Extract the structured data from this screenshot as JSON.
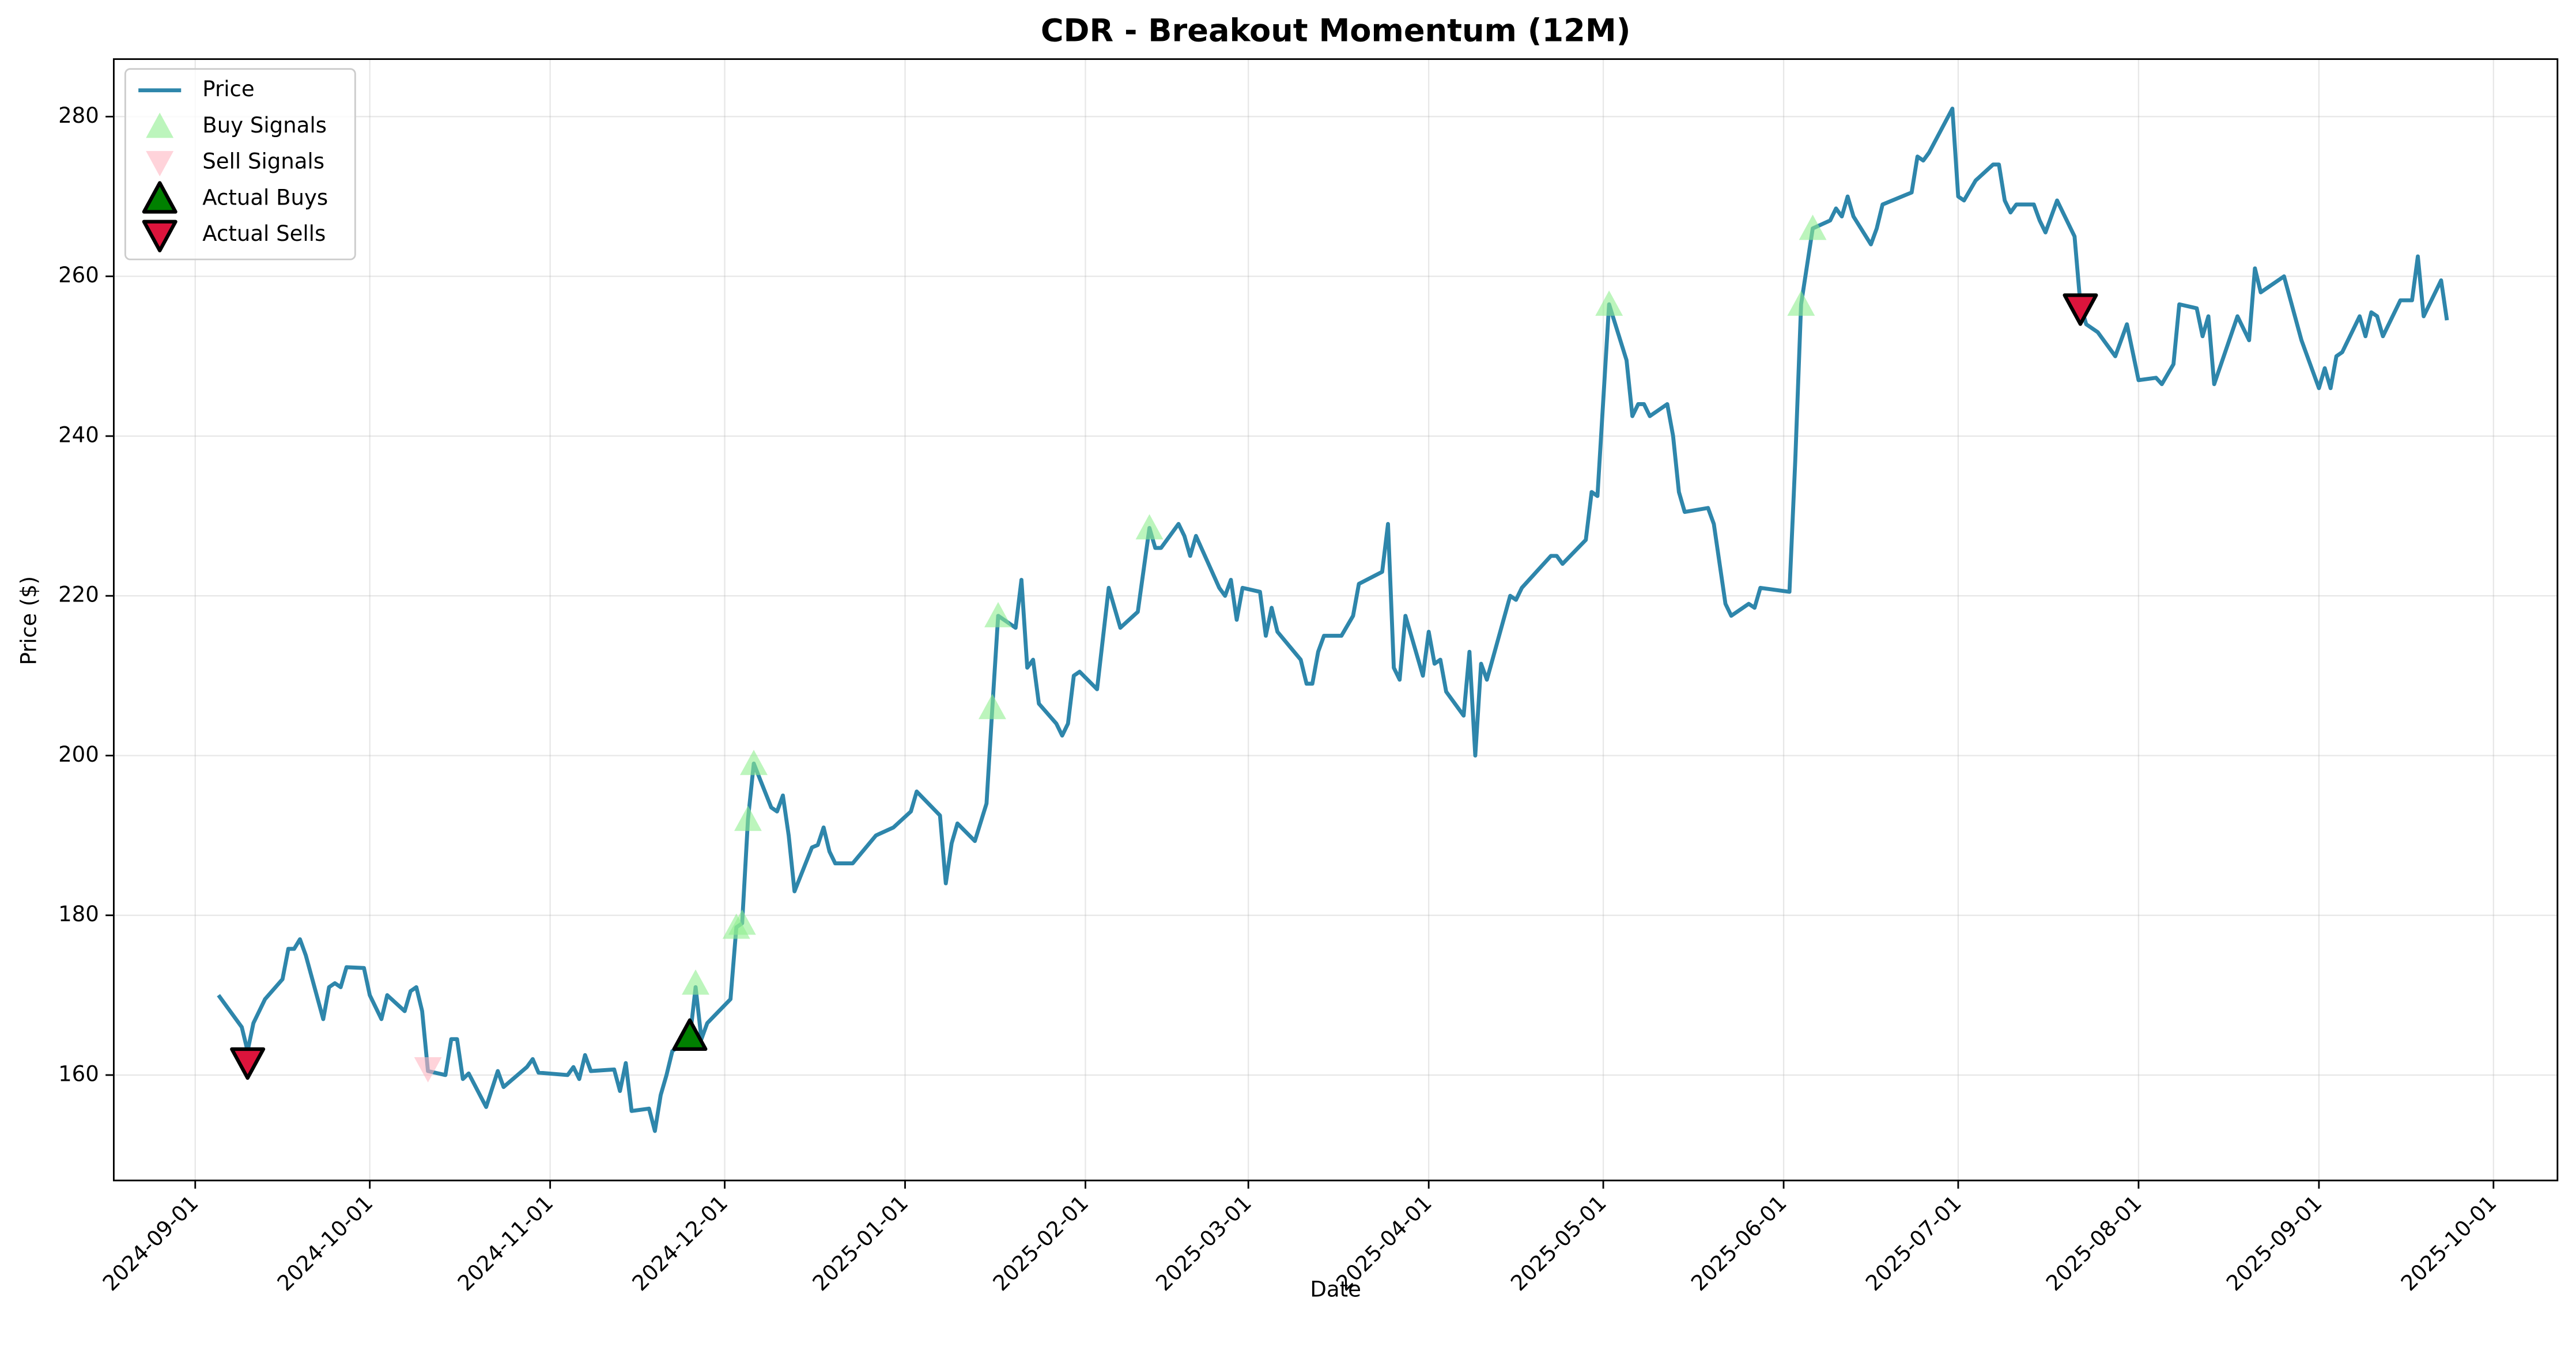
{
  "chart_data": {
    "type": "line",
    "title": "CDR - Breakout Momentum (12M)",
    "x_label": "Date",
    "y_label": "Price ($)",
    "xlim": [
      "2024-08-18",
      "2025-10-12"
    ],
    "xticks": [
      "2024-09-01",
      "2024-10-01",
      "2024-11-01",
      "2024-12-01",
      "2025-01-01",
      "2025-02-01",
      "2025-03-01",
      "2025-04-01",
      "2025-05-01",
      "2025-06-01",
      "2025-07-01",
      "2025-08-01",
      "2025-09-01",
      "2025-10-01"
    ],
    "ylim": [
      146.8,
      287.2
    ],
    "yticks": [
      160,
      180,
      200,
      220,
      240,
      260,
      280
    ],
    "grid": true,
    "legend": "upper-left",
    "series": [
      {
        "name": "Price",
        "marker": "line",
        "color": "#2e86ab",
        "x": [
          "2024-09-05",
          "2024-09-09",
          "2024-09-10",
          "2024-09-11",
          "2024-09-13",
          "2024-09-16",
          "2024-09-17",
          "2024-09-18",
          "2024-09-19",
          "2024-09-20",
          "2024-09-23",
          "2024-09-24",
          "2024-09-25",
          "2024-09-26",
          "2024-09-27",
          "2024-09-30",
          "2024-10-01",
          "2024-10-03",
          "2024-10-04",
          "2024-10-07",
          "2024-10-08",
          "2024-10-09",
          "2024-10-10",
          "2024-10-11",
          "2024-10-14",
          "2024-10-15",
          "2024-10-16",
          "2024-10-17",
          "2024-10-18",
          "2024-10-21",
          "2024-10-23",
          "2024-10-24",
          "2024-10-28",
          "2024-10-29",
          "2024-10-30",
          "2024-11-04",
          "2024-11-05",
          "2024-11-06",
          "2024-11-07",
          "2024-11-08",
          "2024-11-12",
          "2024-11-13",
          "2024-11-14",
          "2024-11-15",
          "2024-11-18",
          "2024-11-19",
          "2024-11-20",
          "2024-11-21",
          "2024-11-22",
          "2024-11-25",
          "2024-11-26",
          "2024-11-27",
          "2024-11-28",
          "2024-12-02",
          "2024-12-03",
          "2024-12-04",
          "2024-12-05",
          "2024-12-06",
          "2024-12-09",
          "2024-12-10",
          "2024-12-11",
          "2024-12-12",
          "2024-12-13",
          "2024-12-16",
          "2024-12-17",
          "2024-12-18",
          "2024-12-19",
          "2024-12-20",
          "2024-12-23",
          "2024-12-27",
          "2024-12-30",
          "2025-01-02",
          "2025-01-03",
          "2025-01-07",
          "2025-01-08",
          "2025-01-09",
          "2025-01-10",
          "2025-01-13",
          "2025-01-15",
          "2025-01-16",
          "2025-01-17",
          "2025-01-20",
          "2025-01-21",
          "2025-01-22",
          "2025-01-23",
          "2025-01-24",
          "2025-01-27",
          "2025-01-28",
          "2025-01-29",
          "2025-01-30",
          "2025-01-31",
          "2025-02-03",
          "2025-02-05",
          "2025-02-07",
          "2025-02-10",
          "2025-02-12",
          "2025-02-13",
          "2025-02-14",
          "2025-02-17",
          "2025-02-18",
          "2025-02-19",
          "2025-02-20",
          "2025-02-24",
          "2025-02-25",
          "2025-02-26",
          "2025-02-27",
          "2025-02-28",
          "2025-03-03",
          "2025-03-04",
          "2025-03-05",
          "2025-03-06",
          "2025-03-10",
          "2025-03-11",
          "2025-03-12",
          "2025-03-13",
          "2025-03-14",
          "2025-03-17",
          "2025-03-19",
          "2025-03-20",
          "2025-03-24",
          "2025-03-25",
          "2025-03-26",
          "2025-03-27",
          "2025-03-28",
          "2025-03-31",
          "2025-04-01",
          "2025-04-02",
          "2025-04-03",
          "2025-04-04",
          "2025-04-07",
          "2025-04-08",
          "2025-04-09",
          "2025-04-10",
          "2025-04-11",
          "2025-04-15",
          "2025-04-16",
          "2025-04-17",
          "2025-04-22",
          "2025-04-23",
          "2025-04-24",
          "2025-04-28",
          "2025-04-29",
          "2025-04-30",
          "2025-05-02",
          "2025-05-05",
          "2025-05-06",
          "2025-05-07",
          "2025-05-08",
          "2025-05-09",
          "2025-05-12",
          "2025-05-13",
          "2025-05-14",
          "2025-05-15",
          "2025-05-19",
          "2025-05-20",
          "2025-05-22",
          "2025-05-23",
          "2025-05-26",
          "2025-05-27",
          "2025-05-28",
          "2025-06-02",
          "2025-06-03",
          "2025-06-04",
          "2025-06-06",
          "2025-06-09",
          "2025-06-10",
          "2025-06-11",
          "2025-06-12",
          "2025-06-13",
          "2025-06-16",
          "2025-06-17",
          "2025-06-18",
          "2025-06-23",
          "2025-06-24",
          "2025-06-25",
          "2025-06-26",
          "2025-06-30",
          "2025-07-01",
          "2025-07-02",
          "2025-07-04",
          "2025-07-07",
          "2025-07-08",
          "2025-07-09",
          "2025-07-10",
          "2025-07-11",
          "2025-07-14",
          "2025-07-15",
          "2025-07-16",
          "2025-07-18",
          "2025-07-21",
          "2025-07-22",
          "2025-07-23",
          "2025-07-25",
          "2025-07-28",
          "2025-07-30",
          "2025-08-01",
          "2025-08-04",
          "2025-08-05",
          "2025-08-07",
          "2025-08-08",
          "2025-08-11",
          "2025-08-12",
          "2025-08-13",
          "2025-08-14",
          "2025-08-18",
          "2025-08-20",
          "2025-08-21",
          "2025-08-22",
          "2025-08-26",
          "2025-08-29",
          "2025-09-01",
          "2025-09-02",
          "2025-09-03",
          "2025-09-04",
          "2025-09-05",
          "2025-09-08",
          "2025-09-09",
          "2025-09-10",
          "2025-09-11",
          "2025-09-12",
          "2025-09-15",
          "2025-09-17",
          "2025-09-18",
          "2025-09-19",
          "2025-09-22",
          "2025-09-23"
        ],
        "values": [
          170,
          166,
          163,
          166.5,
          169.5,
          172,
          175.8,
          175.8,
          177,
          175,
          167,
          171,
          171.5,
          171,
          173.5,
          173.4,
          170,
          167,
          170,
          168,
          170.5,
          171,
          168,
          160.5,
          160,
          164.5,
          164.5,
          159.5,
          160.2,
          156,
          160.5,
          158.5,
          161,
          162,
          160.3,
          160,
          161,
          159.5,
          162.5,
          160.5,
          160.7,
          158,
          161.5,
          155.5,
          155.8,
          153,
          157.5,
          160,
          163,
          164.6,
          171,
          164.5,
          166.5,
          169.5,
          178.5,
          179,
          192,
          199,
          193.5,
          193,
          195,
          190,
          183,
          188.5,
          188.8,
          191,
          188,
          186.5,
          186.5,
          190,
          191,
          193,
          195.5,
          192.5,
          184,
          189,
          191.5,
          189.3,
          194,
          206,
          217.5,
          216,
          222,
          211,
          212,
          206.5,
          204,
          202.5,
          204,
          210,
          210.5,
          208.3,
          221,
          216,
          218,
          228.5,
          226,
          226,
          229,
          227.5,
          225,
          227.5,
          221,
          220,
          222,
          217,
          221,
          220.5,
          215,
          218.5,
          215.5,
          212,
          209,
          209,
          213,
          215,
          215,
          217.5,
          221.5,
          223,
          229,
          211,
          209.5,
          217.5,
          210,
          215.5,
          211.5,
          212,
          208,
          205,
          213,
          200,
          211.5,
          209.5,
          220,
          219.5,
          221,
          225,
          225,
          224,
          227,
          233,
          232.5,
          256.5,
          249.5,
          242.5,
          244,
          244,
          242.5,
          244,
          240,
          233,
          230.5,
          231,
          229,
          219,
          217.5,
          219,
          218.5,
          221,
          220.5,
          237,
          256.5,
          266,
          267,
          268.5,
          267.5,
          270,
          267.5,
          264,
          266,
          269,
          270.5,
          275,
          274.5,
          275.5,
          281,
          270,
          269.5,
          272,
          274,
          274,
          269.5,
          268,
          269,
          269,
          267,
          265.5,
          269.5,
          265,
          256.5,
          254,
          253,
          250,
          254,
          247,
          247.3,
          246.5,
          249,
          256.5,
          256,
          252.5,
          255,
          246.5,
          255,
          252,
          261,
          258,
          260,
          252,
          246,
          248.5,
          246,
          250,
          250.5,
          255,
          252.5,
          255.5,
          255,
          252.5,
          257,
          257,
          262.5,
          255,
          259.5,
          254.5
        ]
      },
      {
        "name": "Buy Signals",
        "marker": "triangle-up",
        "color": "#90ee90",
        "opacity": 0.6,
        "x": [
          "2024-11-26",
          "2024-12-03",
          "2024-12-04",
          "2024-12-05",
          "2024-12-06",
          "2025-01-16",
          "2025-01-17",
          "2025-02-12",
          "2025-05-02",
          "2025-06-04",
          "2025-06-06"
        ],
        "values": [
          171.5,
          178.5,
          179,
          192,
          199,
          206,
          217.5,
          228.5,
          256.5,
          256.5,
          266
        ]
      },
      {
        "name": "Sell Signals",
        "marker": "triangle-down",
        "color": "#ffb6c1",
        "opacity": 0.6,
        "x": [
          "2024-10-11"
        ],
        "values": [
          160.8
        ]
      },
      {
        "name": "Actual Buys",
        "marker": "triangle-up",
        "color": "#008000",
        "edgecolor": "#000000",
        "x": [
          "2024-11-25"
        ],
        "values": [
          164.9
        ]
      },
      {
        "name": "Actual Sells",
        "marker": "triangle-down",
        "color": "#dc143c",
        "edgecolor": "#000000",
        "x": [
          "2024-09-10",
          "2025-07-22"
        ],
        "values": [
          161.6,
          256
        ]
      }
    ]
  }
}
